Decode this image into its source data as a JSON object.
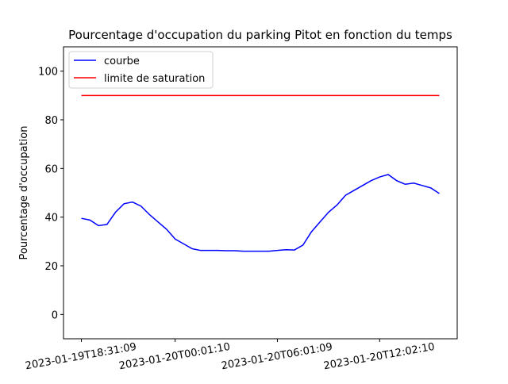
{
  "chart_data": {
    "type": "line",
    "title": "Pourcentage d'occupation du parking Pitot en fonction du temps",
    "ylabel": "Pourcentage d'occupation",
    "categories": [
      "2023-01-19T18:31:09",
      null,
      null,
      null,
      null,
      null,
      null,
      null,
      null,
      null,
      null,
      "2023-01-20T00:01:10",
      null,
      null,
      null,
      null,
      null,
      null,
      null,
      null,
      null,
      null,
      null,
      "2023-01-20T06:01:09",
      null,
      null,
      null,
      null,
      null,
      null,
      null,
      null,
      null,
      null,
      null,
      "2023-01-20T12:02:10",
      null,
      null,
      null,
      null,
      null,
      null,
      null
    ],
    "series": [
      {
        "name": "courbe",
        "color": "#0000ff",
        "values": [
          39.5,
          38.8,
          36.5,
          37,
          42,
          45.5,
          46.2,
          44.5,
          41,
          38,
          35,
          31,
          29,
          27,
          26.3,
          26.3,
          26.3,
          26.2,
          26.2,
          26,
          26,
          26,
          26,
          26.3,
          26.6,
          26.5,
          28.5,
          34,
          38,
          42,
          45,
          49,
          51,
          53,
          55,
          56.5,
          57.5,
          55,
          53.5,
          54,
          53,
          52,
          49.7
        ]
      },
      {
        "name": "limite de saturation",
        "color": "#ff0000",
        "values": [
          90,
          90,
          90,
          90,
          90,
          90,
          90,
          90,
          90,
          90,
          90,
          90,
          90,
          90,
          90,
          90,
          90,
          90,
          90,
          90,
          90,
          90,
          90,
          90,
          90,
          90,
          90,
          90,
          90,
          90,
          90,
          90,
          90,
          90,
          90,
          90,
          90,
          90,
          90,
          90,
          90,
          90,
          90
        ]
      }
    ],
    "ylim": [
      -10,
      110
    ],
    "yticks": [
      0,
      20,
      40,
      60,
      80,
      100
    ],
    "legend": "upper left"
  }
}
